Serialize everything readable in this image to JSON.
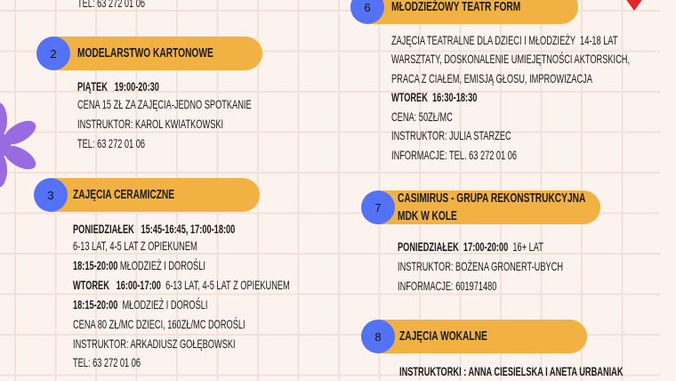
{
  "top_line": "TEL: 63 272 01 06",
  "sections": [
    {
      "number": "2",
      "title": "MODELARSTWO KARTONOWE",
      "lines": [
        {
          "bold": "PIĄTEK   19:00-20:30",
          "text": ""
        },
        {
          "bold": "",
          "text": "CENA 15 ZŁ ZA ZAJĘCIA-JEDNO SPOTKANIE"
        },
        {
          "bold": "",
          "text": "INSTRUKTOR: KAROL KWIATKOWSKI"
        },
        {
          "bold": "",
          "text": "TEL: 63 272 01 06"
        }
      ]
    },
    {
      "number": "3",
      "title": "ZAJĘCIA CERAMICZNE",
      "lines": [
        {
          "bold": "PONIEDZIAŁEK   15:45-16:45, 17:00-18:00",
          "text": ""
        },
        {
          "bold": "",
          "text": "6-13 LAT, 4-5 LAT Z OPIEKUNEM"
        },
        {
          "bold": "18:15-20:00",
          "text": " MŁODZIEŻ I DOROŚLI"
        },
        {
          "bold": "WTOREK   16:00-17:00",
          "text": "  6-13 LAT, 4-5 LAT Z OPIEKUNEM"
        },
        {
          "bold": "18:15-20:00",
          "text": "  MŁODZIEŻ I DOROŚLI"
        },
        {
          "bold": "",
          "text": "CENA 80 ZŁ/MC DZIECI, 160ZŁ/MC DOROŚLI"
        },
        {
          "bold": "",
          "text": "INSTRUKTOR: ARKADIUSZ GOŁĘBOWSKI"
        },
        {
          "bold": "",
          "text": "TEL: 63 272 01 06"
        }
      ]
    },
    {
      "number": "6",
      "title": "MŁODZIEŻOWY TEATR FORM",
      "lines": [
        {
          "bold": "",
          "text": "ZAJĘCIA TEATRALNE DLA DZIECI I MŁODZIEŻY  14-18 LAT"
        },
        {
          "bold": "",
          "text": "WARSZTATY, DOSKONALENIE UMIEJĘTNOŚCI AKTORSKICH,"
        },
        {
          "bold": "",
          "text": "PRACA Z CIAŁEM, EMISJĄ GŁOSU, IMPROWIZACJA"
        },
        {
          "bold": "WTOREK  16:30-18:30",
          "text": ""
        },
        {
          "bold": "",
          "text": "CENA: 50ZŁ/MC"
        },
        {
          "bold": "",
          "text": "INSTRUKTOR: JULIA STARZEC"
        },
        {
          "bold": "",
          "text": "INFORMACJE: TEL. 63 272 01 06"
        }
      ]
    },
    {
      "number": "7",
      "title": "CASIMIRUS - GRUPA REKONSTRUKCYJNA",
      "title2": "MDK W KOLE",
      "lines": [
        {
          "bold": "PONIEDZIAŁEK  17:00-20:00",
          "text": "  16+ LAT"
        },
        {
          "bold": "",
          "text": "INSTRUKTOR: BOŻENA GRONERT-UBYCH"
        },
        {
          "bold": "",
          "text": "INFORMACJE: 601971480"
        }
      ]
    },
    {
      "number": "8",
      "title": "ZAJĘCIA WOKALNE",
      "lines": [
        {
          "bold": "INSTRUKTORKI : ANNA CIESIELSKA I ANETA URBANIAK",
          "text": ""
        }
      ]
    }
  ],
  "colors": {
    "background": "#fdf3ee",
    "grid": "#f1e1d9",
    "pill": "#f2b143",
    "circle": "#5472f5",
    "flower": "#9a6be0",
    "heart": "#e8232a"
  },
  "decorations": [
    "flower-icon",
    "heart-icon"
  ]
}
